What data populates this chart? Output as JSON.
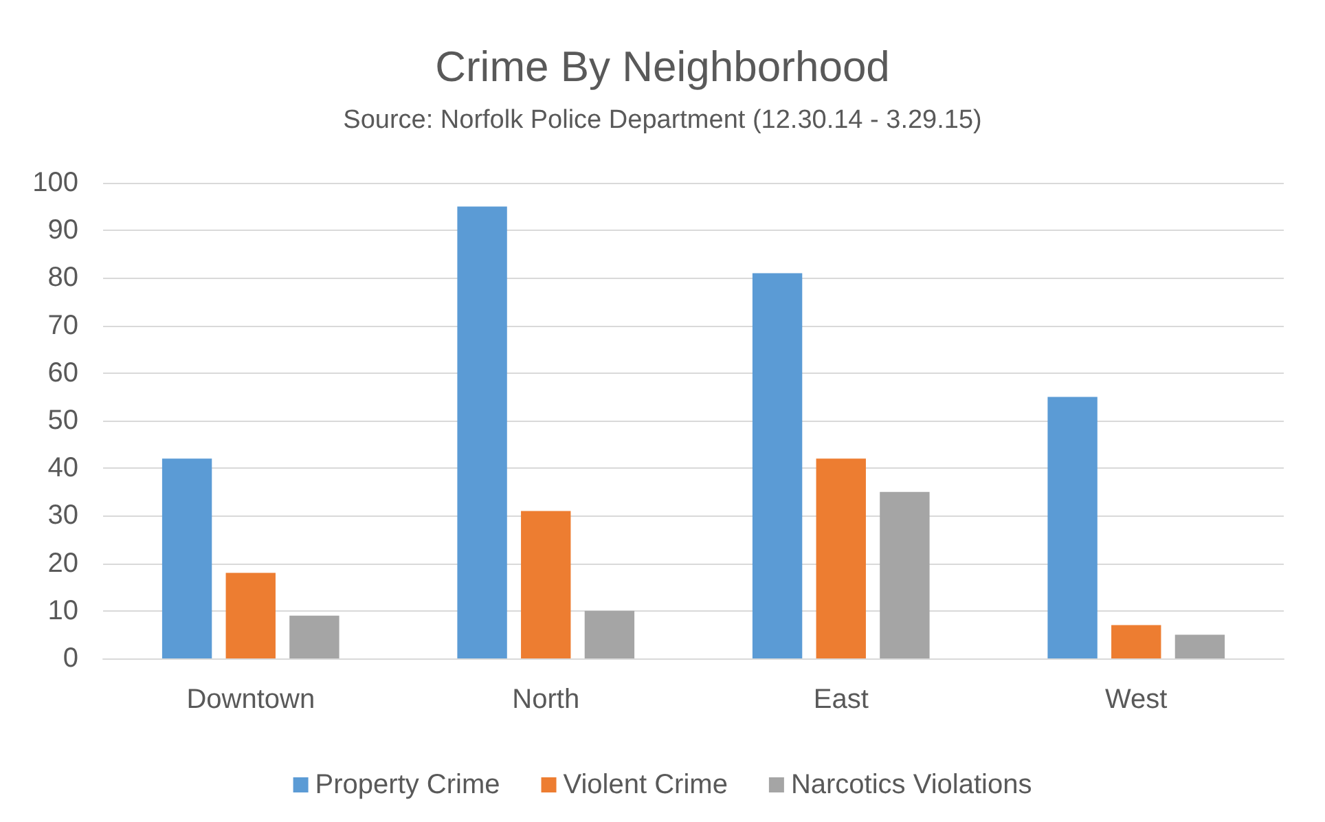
{
  "chart_data": {
    "type": "bar",
    "title": "Crime By Neighborhood",
    "subtitle": "Source: Norfolk Police Department (12.30.14 - 3.29.15)",
    "categories": [
      "Downtown",
      "North",
      "East",
      "West"
    ],
    "series": [
      {
        "name": "Property Crime",
        "color": "#5b9bd5",
        "values": [
          42,
          95,
          81,
          55
        ]
      },
      {
        "name": "Violent Crime",
        "color": "#ed7d31",
        "values": [
          18,
          31,
          42,
          7
        ]
      },
      {
        "name": "Narcotics Violations",
        "color": "#a5a5a5",
        "values": [
          9,
          10,
          35,
          5
        ]
      }
    ],
    "ylim": [
      0,
      100
    ],
    "yticks": [
      0,
      10,
      20,
      30,
      40,
      50,
      60,
      70,
      80,
      90,
      100
    ],
    "grid": "y",
    "legend": "bottom"
  }
}
